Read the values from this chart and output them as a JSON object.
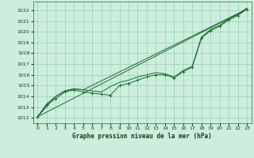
{
  "title": "Graphe pression niveau de la mer (hPa)",
  "bg_color": "#cceedd",
  "grid_color": "#99ccbb",
  "line_color": "#1a6b2a",
  "xlim": [
    -0.5,
    23.5
  ],
  "ylim": [
    1011.5,
    1022.8
  ],
  "yticks": [
    1012,
    1013,
    1014,
    1015,
    1016,
    1017,
    1018,
    1019,
    1020,
    1021,
    1022
  ],
  "xticks": [
    0,
    1,
    2,
    3,
    4,
    5,
    6,
    7,
    8,
    9,
    10,
    11,
    12,
    13,
    14,
    15,
    16,
    17,
    18,
    19,
    20,
    21,
    22,
    23
  ],
  "line1": {
    "x": [
      0,
      1,
      2,
      3,
      4,
      5,
      6,
      7,
      8,
      9,
      10,
      11,
      12,
      13,
      14,
      15,
      16,
      17,
      18,
      19,
      20,
      21,
      22,
      23
    ],
    "y": [
      1012.1,
      1013.2,
      1013.8,
      1014.4,
      1014.6,
      1014.4,
      1014.3,
      1014.2,
      1014.1,
      1015.0,
      1015.2,
      1015.5,
      1015.8,
      1016.0,
      1016.0,
      1015.7,
      1016.3,
      1016.7,
      1019.4,
      1020.1,
      1020.5,
      1021.1,
      1021.5,
      1022.1
    ]
  },
  "line2": {
    "x": [
      0,
      23
    ],
    "y": [
      1012.1,
      1022.1
    ]
  },
  "line3": {
    "x": [
      0,
      2,
      3,
      4,
      5,
      6,
      7,
      8,
      9,
      10,
      11,
      12,
      13,
      14,
      15,
      16,
      17,
      18,
      19,
      20,
      21,
      22,
      23
    ],
    "y": [
      1012.1,
      1014.0,
      1014.5,
      1014.7,
      1014.6,
      1014.5,
      1014.4,
      1014.9,
      1015.3,
      1015.5,
      1015.8,
      1016.0,
      1016.2,
      1016.1,
      1015.8,
      1016.4,
      1016.8,
      1019.5,
      1020.2,
      1020.6,
      1021.2,
      1021.6,
      1022.2
    ]
  },
  "line4": {
    "x": [
      0,
      1,
      2,
      3,
      4,
      5,
      23
    ],
    "y": [
      1012.1,
      1013.3,
      1014.0,
      1014.5,
      1014.7,
      1014.6,
      1022.1
    ]
  }
}
